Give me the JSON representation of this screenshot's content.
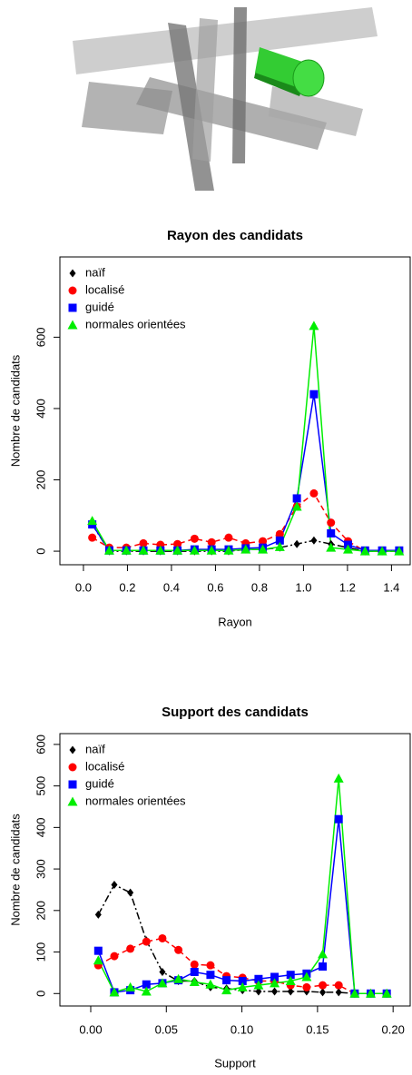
{
  "chart_data": [
    {
      "type": "line",
      "title": "Rayon des candidats",
      "xlabel": "Rayon",
      "ylabel": "Nombre de candidats",
      "x": [
        0.04,
        0.1175,
        0.195,
        0.2725,
        0.35,
        0.4275,
        0.505,
        0.5825,
        0.66,
        0.7375,
        0.815,
        0.8925,
        0.97,
        1.0475,
        1.125,
        1.2025,
        1.28,
        1.3575,
        1.435
      ],
      "xlim": [
        -0.107,
        1.485
      ],
      "ylim": [
        -38,
        825
      ],
      "xticks": [
        {
          "value": 0,
          "label": "0.0"
        },
        0.2,
        0.4,
        0.6,
        0.8,
        {
          "value": 1,
          "label": "1.0"
        },
        1.2,
        1.4
      ],
      "yticks": [
        0,
        200,
        400,
        600
      ],
      "legend": "top-left",
      "series": [
        {
          "name": "naïf",
          "color": "#000000",
          "marker": "diamond",
          "dash": "dashdot",
          "values": [
            75,
            0,
            0,
            0,
            0,
            0,
            0,
            0,
            0,
            5,
            5,
            10,
            20,
            30,
            20,
            10,
            0,
            0,
            0
          ]
        },
        {
          "name": "localisé",
          "color": "#ff0000",
          "marker": "circle",
          "dash": "dashed",
          "values": [
            38,
            10,
            10,
            22,
            18,
            20,
            35,
            25,
            38,
            22,
            28,
            48,
            125,
            162,
            80,
            28,
            0,
            0,
            0
          ]
        },
        {
          "name": "guidé",
          "color": "#0000ff",
          "marker": "square",
          "dash": "solid",
          "values": [
            75,
            2,
            2,
            2,
            2,
            2,
            5,
            5,
            5,
            8,
            10,
            30,
            148,
            440,
            50,
            18,
            2,
            2,
            2
          ]
        },
        {
          "name": "normales orientées",
          "color": "#00ee00",
          "marker": "triangle",
          "dash": "solid",
          "values": [
            85,
            2,
            2,
            2,
            2,
            2,
            2,
            2,
            2,
            5,
            5,
            12,
            125,
            632,
            10,
            5,
            0,
            0,
            0
          ]
        }
      ]
    },
    {
      "type": "line",
      "title": "Support des candidats",
      "xlabel": "Support",
      "ylabel": "Nombre de candidats",
      "x": [
        0.005,
        0.0156,
        0.0262,
        0.0368,
        0.0474,
        0.058,
        0.0686,
        0.0792,
        0.0898,
        0.1004,
        0.111,
        0.1216,
        0.1322,
        0.1428,
        0.1534,
        0.164,
        0.1746,
        0.1852,
        0.1958
      ],
      "xlim": [
        -0.0204,
        0.2113
      ],
      "ylim": [
        -30,
        626
      ],
      "xticks": [
        {
          "value": 0,
          "label": "0.00"
        },
        0.05,
        {
          "value": 0.1,
          "label": "0.10"
        },
        0.15,
        {
          "value": 0.2,
          "label": "0.20"
        }
      ],
      "yticks": [
        0,
        100,
        200,
        300,
        400,
        500,
        600
      ],
      "legend": "top-left",
      "series": [
        {
          "name": "naïf",
          "color": "#000000",
          "marker": "diamond",
          "dash": "dashdot",
          "values": [
            190,
            262,
            243,
            128,
            52,
            30,
            30,
            15,
            12,
            8,
            5,
            5,
            5,
            5,
            3,
            3,
            0,
            0,
            0
          ]
        },
        {
          "name": "localisé",
          "color": "#ff0000",
          "marker": "circle",
          "dash": "dashed",
          "values": [
            68,
            90,
            108,
            125,
            133,
            105,
            70,
            68,
            42,
            38,
            30,
            30,
            20,
            15,
            20,
            20,
            0,
            0,
            0
          ]
        },
        {
          "name": "guidé",
          "color": "#0000ff",
          "marker": "square",
          "dash": "solid",
          "values": [
            103,
            3,
            8,
            22,
            25,
            32,
            52,
            45,
            32,
            30,
            35,
            40,
            45,
            48,
            65,
            420,
            0,
            0,
            0
          ]
        },
        {
          "name": "normales orientées",
          "color": "#00ee00",
          "marker": "triangle",
          "dash": "solid",
          "values": [
            80,
            3,
            15,
            5,
            25,
            35,
            28,
            22,
            8,
            15,
            20,
            25,
            30,
            40,
            95,
            518,
            0,
            0,
            0
          ]
        }
      ]
    }
  ]
}
